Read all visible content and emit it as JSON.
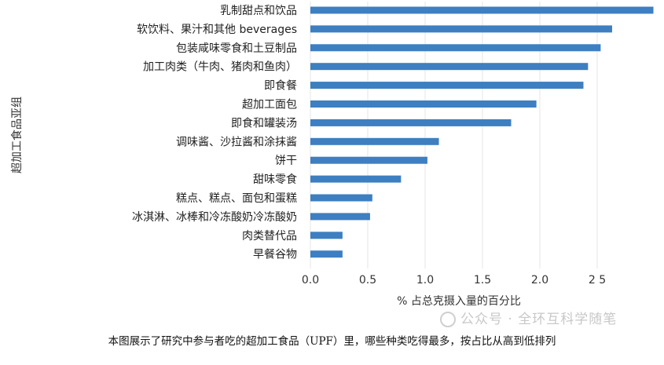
{
  "chart_data": {
    "type": "bar",
    "orientation": "horizontal",
    "categories": [
      "乳制甜点和饮品",
      "软饮料、果汁和其他 beverages",
      "包装咸味零食和土豆制品",
      "加工肉类（牛肉、猪肉和鱼肉）",
      "即食餐",
      "超加工面包",
      "即食和罐装汤",
      "调味酱、沙拉酱和涂抹酱",
      "饼干",
      "甜味零食",
      "糕点、糕点、面包和蛋糕",
      "冰淇淋、冰棒和冷冻酸奶冷冻酸奶",
      "肉类替代品",
      "早餐谷物"
    ],
    "values": [
      2.99,
      2.63,
      2.53,
      2.42,
      2.38,
      1.97,
      1.75,
      1.12,
      1.02,
      0.79,
      0.54,
      0.52,
      0.28,
      0.28
    ],
    "xlim": [
      0,
      3.0
    ],
    "xticks": [
      0.0,
      0.5,
      1.0,
      1.5,
      2.0,
      2.5
    ],
    "xtick_labels": [
      "0.0",
      "0.5",
      "1.0",
      "1.5",
      "2.0",
      "2 5"
    ],
    "xlabel": "% 占总克摄入量的百分比",
    "ylabel": "超加工食品亚组",
    "grid": "vertical",
    "bar_color": "#3d7fc1",
    "grid_color": "#e6e6e6"
  },
  "caption": "本图展示了研究中参与者吃的超加工食品（UPF）里，哪些种类吃得最多，按占比从高到低排列",
  "watermark": "公众号 · 全环互科学随笔"
}
